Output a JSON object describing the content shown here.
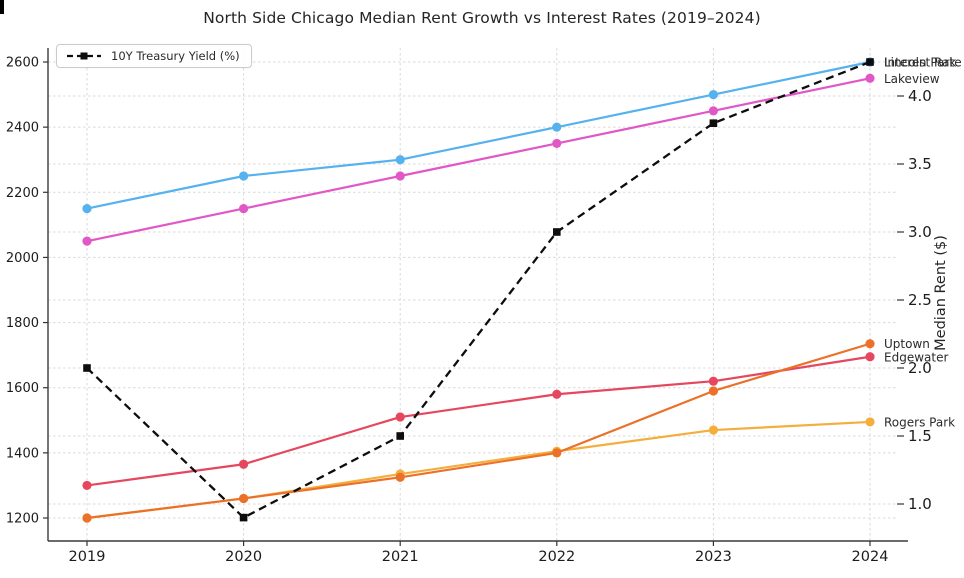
{
  "title": "North Side Chicago Median Rent Growth vs Interest Rates (2019–2024)",
  "legend": {
    "label": "10Y Treasury Yield (%)"
  },
  "right_axis_label": "Median Rent ($)",
  "chart_data": {
    "type": "line",
    "title": "North Side Chicago Median Rent Growth vs Interest Rates (2019–2024)",
    "x_ticks": [
      "2019",
      "2020",
      "2021",
      "2022",
      "2023",
      "2024"
    ],
    "left_axis": {
      "ticks": [
        1200,
        1400,
        1600,
        1800,
        2000,
        2200,
        2400,
        2600
      ],
      "range": [
        1130,
        2650
      ]
    },
    "right_axis": {
      "label": "Median Rent ($)",
      "ticks": [
        "1.0",
        "1.5",
        "2.0",
        "2.5",
        "3.0",
        "3.5",
        "4.0"
      ],
      "range": [
        0.73,
        4.35
      ]
    },
    "grid": true,
    "legend_position": "upper left",
    "legend_entries": [
      "10Y Treasury Yield (%)"
    ],
    "series": [
      {
        "name": "Lincoln Park",
        "axis": "left",
        "color": "#56b2ee",
        "marker": "circle",
        "dashed": false,
        "values": [
          2150,
          2250,
          2300,
          2400,
          2500,
          2600
        ]
      },
      {
        "name": "Lakeview",
        "axis": "left",
        "color": "#e257c6",
        "marker": "circle",
        "dashed": false,
        "values": [
          2050,
          2150,
          2250,
          2350,
          2450,
          2550
        ]
      },
      {
        "name": "Edgewater",
        "axis": "left",
        "color": "#e5475e",
        "marker": "circle",
        "dashed": false,
        "values": [
          1300,
          1365,
          1510,
          1580,
          1620,
          1695
        ]
      },
      {
        "name": "Rogers Park",
        "axis": "left",
        "color": "#f4ae3e",
        "marker": "circle",
        "dashed": false,
        "values": [
          1200,
          1260,
          1335,
          1405,
          1470,
          1495
        ]
      },
      {
        "name": "Uptown",
        "axis": "left",
        "color": "#ec7128",
        "marker": "circle",
        "dashed": false,
        "values": [
          1200,
          1260,
          1325,
          1400,
          1590,
          1735
        ]
      },
      {
        "name": "10Y Treasury Yield (%)",
        "axis": "right",
        "color": "#0d0d0d",
        "marker": "square",
        "dashed": true,
        "values": [
          2.0,
          0.9,
          1.5,
          3.0,
          3.8,
          4.25
        ]
      }
    ],
    "end_labels": [
      {
        "text": "Lincoln Park",
        "axis": "left",
        "value": 2600
      },
      {
        "text": "Interest Rate",
        "axis": "right",
        "value": 4.25
      },
      {
        "text": "Lakeview",
        "axis": "left",
        "value": 2550
      },
      {
        "text": "Uptown",
        "axis": "left",
        "value": 1735
      },
      {
        "text": "Edgewater",
        "axis": "left",
        "value": 1695
      },
      {
        "text": "Rogers Park",
        "axis": "left",
        "value": 1495
      }
    ]
  }
}
